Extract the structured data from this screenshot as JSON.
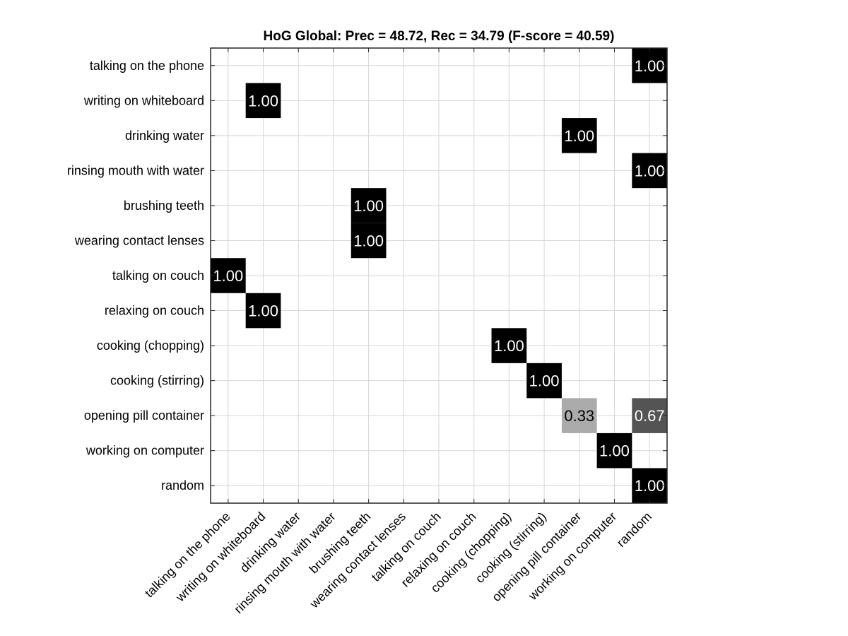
{
  "chart_data": {
    "type": "heatmap",
    "title": "HoG Global: Prec = 48.72, Rec = 34.79 (F-score = 40.59)",
    "row_labels": [
      "talking on the phone",
      "writing on whiteboard",
      "drinking water",
      "rinsing mouth with water",
      "brushing teeth",
      "wearing contact lenses",
      "talking on couch",
      "relaxing on couch",
      "cooking (chopping)",
      "cooking (stirring)",
      "opening pill container",
      "working on computer",
      "random"
    ],
    "col_labels": [
      "talking on the phone",
      "writing on whiteboard",
      "drinking water",
      "rinsing mouth with water",
      "brushing teeth",
      "wearing contact lenses",
      "talking on couch",
      "relaxing on couch",
      "cooking (chopping)",
      "cooking (stirring)",
      "opening pill container",
      "working on computer",
      "random"
    ],
    "cells": [
      {
        "row": 0,
        "col": 12,
        "value": 1.0,
        "label": "1.00"
      },
      {
        "row": 1,
        "col": 1,
        "value": 1.0,
        "label": "1.00"
      },
      {
        "row": 2,
        "col": 10,
        "value": 1.0,
        "label": "1.00"
      },
      {
        "row": 3,
        "col": 12,
        "value": 1.0,
        "label": "1.00"
      },
      {
        "row": 4,
        "col": 4,
        "value": 1.0,
        "label": "1.00"
      },
      {
        "row": 5,
        "col": 4,
        "value": 1.0,
        "label": "1.00"
      },
      {
        "row": 6,
        "col": 0,
        "value": 1.0,
        "label": "1.00"
      },
      {
        "row": 7,
        "col": 1,
        "value": 1.0,
        "label": "1.00"
      },
      {
        "row": 8,
        "col": 8,
        "value": 1.0,
        "label": "1.00"
      },
      {
        "row": 9,
        "col": 9,
        "value": 1.0,
        "label": "1.00"
      },
      {
        "row": 10,
        "col": 10,
        "value": 0.33,
        "label": "0.33"
      },
      {
        "row": 10,
        "col": 12,
        "value": 0.67,
        "label": "0.67"
      },
      {
        "row": 11,
        "col": 11,
        "value": 1.0,
        "label": "1.00"
      },
      {
        "row": 12,
        "col": 12,
        "value": 1.0,
        "label": "1.00"
      }
    ],
    "colormap": "gray-reversed",
    "vlim": [
      0,
      1
    ],
    "grid": true,
    "legend": "none"
  }
}
